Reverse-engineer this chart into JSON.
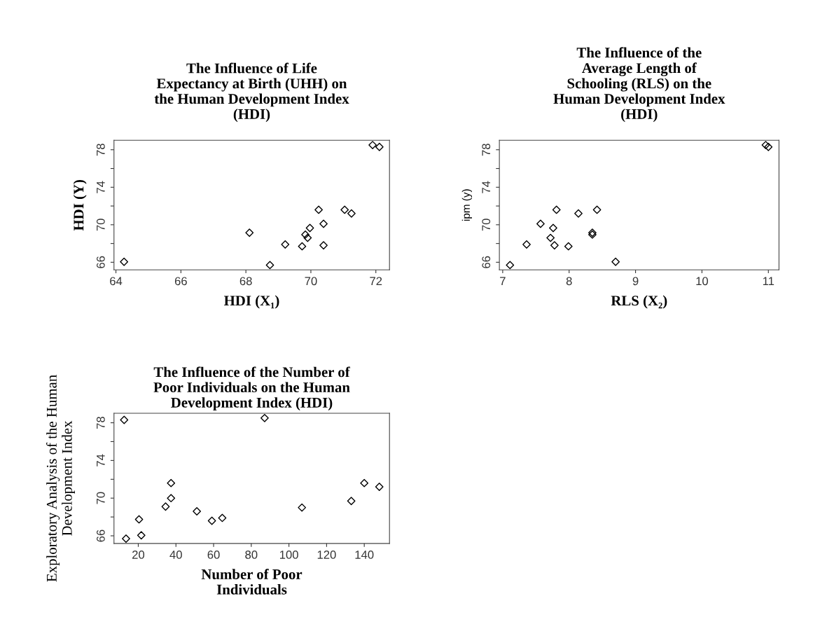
{
  "chart_data": [
    {
      "type": "scatter",
      "title": "The Influence of Life\nExpectancy at Birth (UHH) on\nthe Human Development Index\n(HDI)",
      "xlabel": "HDI (X₁)",
      "ylabel": "HDI (Y)",
      "marker": "diamond",
      "x": [
        64.25,
        68.11,
        68.74,
        69.21,
        69.73,
        69.83,
        69.9,
        69.97,
        70.24,
        70.39,
        70.39,
        71.04,
        71.25,
        71.9,
        72.11
      ],
      "series": [
        {
          "color": "#000000",
          "values": [
            66.05,
            69.15,
            65.7,
            67.9,
            67.7,
            68.95,
            68.6,
            69.65,
            71.6,
            70.1,
            67.8,
            71.6,
            71.2,
            78.5,
            78.3
          ]
        }
      ],
      "xlim": [
        63.94,
        72.42
      ],
      "xticks": [
        64,
        66,
        68,
        70,
        72
      ],
      "ylim": [
        65.19,
        79.01
      ],
      "yticks": [
        66,
        {
          "value": 68,
          "label": null
        },
        70,
        {
          "value": 72,
          "label": null
        },
        74,
        {
          "value": 76,
          "label": null
        },
        78
      ]
    },
    {
      "type": "scatter",
      "title": "The Influence of the\nAverage Length of\nSchooling (RLS) on the\nHuman Development Index\n(HDI)",
      "xlabel": "RLS (X₂)",
      "ylabel": "ipm (y)",
      "marker": "diamond",
      "x": [
        7.11,
        7.36,
        7.57,
        7.72,
        7.76,
        7.78,
        7.81,
        7.99,
        8.14,
        8.35,
        8.35,
        8.42,
        8.7,
        10.96,
        11.0
      ],
      "series": [
        {
          "color": "#000000",
          "values": [
            65.7,
            67.9,
            70.1,
            68.6,
            69.65,
            67.8,
            71.6,
            67.7,
            71.2,
            69.15,
            68.95,
            71.6,
            66.05,
            78.5,
            78.3
          ]
        }
      ],
      "xlim": [
        6.95,
        11.16
      ],
      "xticks": [
        7,
        8,
        9,
        10,
        11
      ],
      "ylim": [
        65.19,
        79.01
      ],
      "yticks": [
        66,
        {
          "value": 68,
          "label": null
        },
        70,
        {
          "value": 72,
          "label": null
        },
        74,
        {
          "value": 76,
          "label": null
        },
        78
      ]
    },
    {
      "type": "scatter",
      "title": "The Influence of the Number of\nPoor Individuals on the Human\nDevelopment Index (HDI)",
      "xlabel": "Number of Poor\nIndividuals",
      "ylabel": "Exploratory Analysis of the Human\nDevelopment Index",
      "marker": "diamond",
      "x": [
        12.5,
        13.5,
        20.4,
        21.6,
        34.5,
        37.4,
        37.4,
        51.1,
        59.1,
        64.6,
        87.1,
        106.9,
        133.1,
        140.0,
        148.0
      ],
      "series": [
        {
          "color": "#000000",
          "values": [
            78.3,
            65.7,
            67.75,
            66.05,
            69.1,
            70.0,
            71.6,
            68.6,
            67.6,
            67.9,
            78.5,
            69.0,
            69.7,
            71.6,
            71.2
          ]
        }
      ],
      "xlim": [
        7.1,
        153.4
      ],
      "xticks": [
        20,
        40,
        60,
        80,
        100,
        120,
        140
      ],
      "ylim": [
        65.19,
        79.01
      ],
      "yticks": [
        66,
        {
          "value": 68,
          "label": null
        },
        70,
        {
          "value": 72,
          "label": null
        },
        74,
        {
          "value": 76,
          "label": null
        },
        78
      ]
    }
  ]
}
